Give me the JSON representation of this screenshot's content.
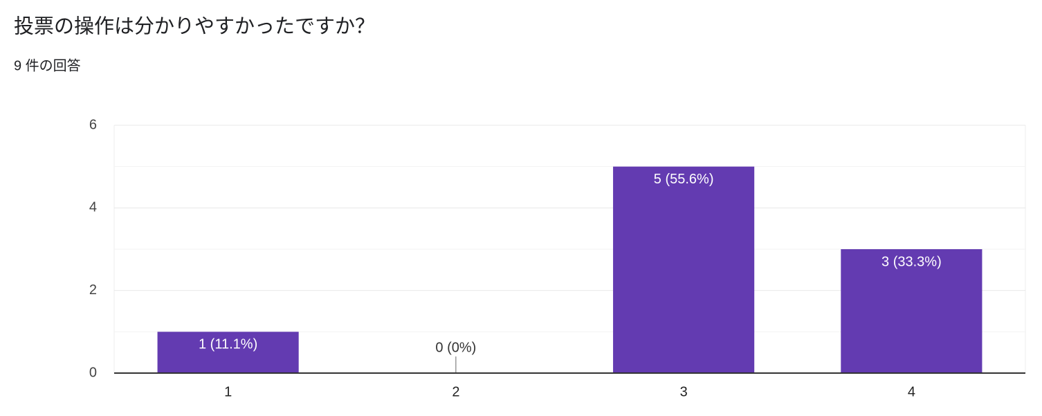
{
  "chart_data": {
    "type": "bar",
    "title": "投票の操作は分かりやすかったですか？",
    "subtitle": "9 件の回答",
    "categories": [
      "1",
      "2",
      "3",
      "4"
    ],
    "values": [
      1,
      0,
      5,
      3
    ],
    "value_labels": [
      "1 (11.1%)",
      "0 (0%)",
      "5 (55.6%)",
      "3 (33.3%)"
    ],
    "color": "#633bb1",
    "ylim": [
      0,
      6
    ],
    "yticks": [
      0,
      2,
      4,
      6
    ],
    "minor_yticks": [
      1,
      3,
      5
    ],
    "grid": true
  }
}
